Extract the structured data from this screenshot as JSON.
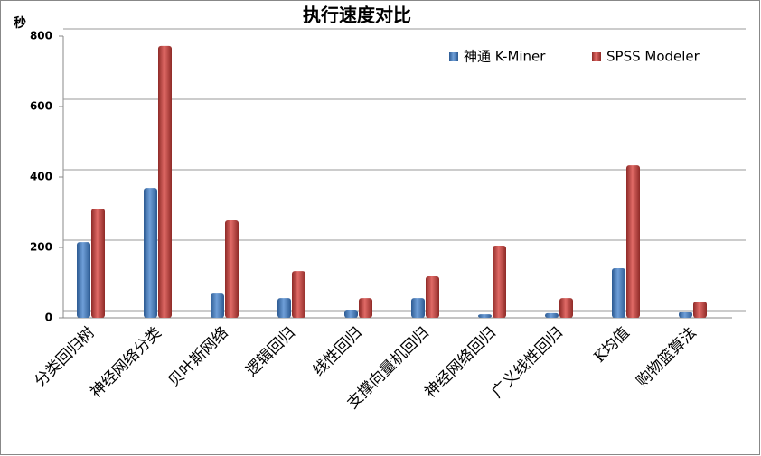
{
  "chart_data": {
    "type": "bar",
    "title": "执行速度对比",
    "y_label": "秒",
    "categories": [
      "分类回归树",
      "神经网络分类",
      "贝叶斯网络",
      "逻辑回归",
      "线性回归",
      "支撑向量机回归",
      "神经网络回归",
      "广义线性回归",
      "K均值",
      "购物篮算法"
    ],
    "series": [
      {
        "name": "神通 K-Miner",
        "color": "#4f81bd",
        "values": [
          215,
          369,
          69,
          56,
          23,
          56,
          10,
          13,
          141,
          18
        ]
      },
      {
        "name": "SPSS Modeler",
        "color": "#c0504d",
        "values": [
          310,
          772,
          277,
          133,
          56,
          118,
          205,
          56,
          433,
          46
        ]
      }
    ],
    "ylim": [
      0,
      800
    ],
    "yticks": [
      0,
      200,
      400,
      600,
      800
    ],
    "grid": true,
    "legend": "top-right"
  }
}
